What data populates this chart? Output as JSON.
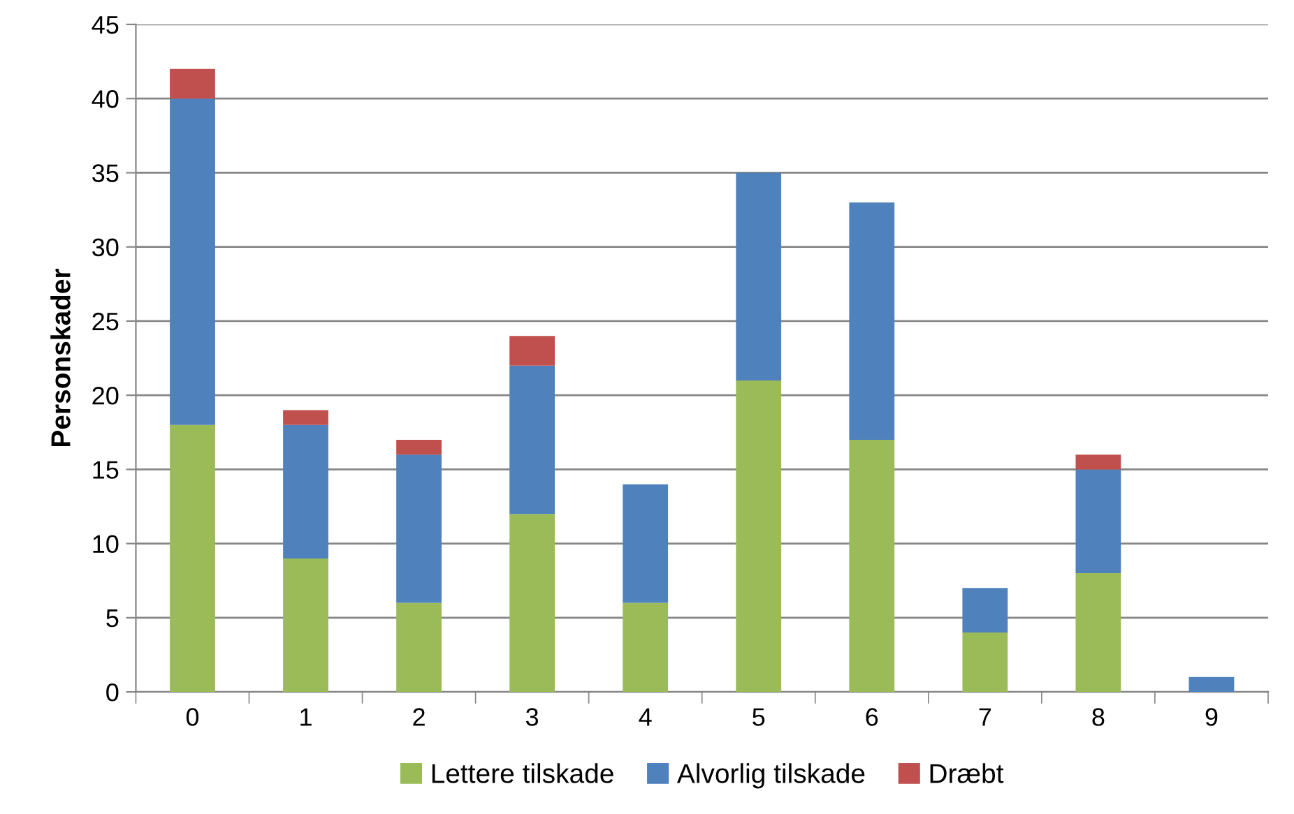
{
  "chart_data": {
    "type": "bar",
    "stacked": true,
    "ylabel": "Personskader",
    "categories": [
      "0",
      "1",
      "2",
      "3",
      "4",
      "5",
      "6",
      "7",
      "8",
      "9"
    ],
    "series": [
      {
        "name": "Lettere tilskade",
        "color": "#9bbb59",
        "values": [
          18,
          9,
          6,
          12,
          6,
          21,
          17,
          4,
          8,
          0
        ]
      },
      {
        "name": "Alvorlig tilskade",
        "color": "#4f81bd",
        "values": [
          22,
          9,
          10,
          10,
          8,
          14,
          16,
          3,
          7,
          1
        ]
      },
      {
        "name": "Dræbt",
        "color": "#c0504d",
        "values": [
          2,
          1,
          1,
          2,
          0,
          0,
          0,
          0,
          1,
          0
        ]
      }
    ],
    "ylim": [
      0,
      45
    ],
    "yticks": [
      0,
      5,
      10,
      15,
      20,
      25,
      30,
      35,
      40,
      45
    ],
    "grid": "y",
    "legend": "bottom"
  }
}
